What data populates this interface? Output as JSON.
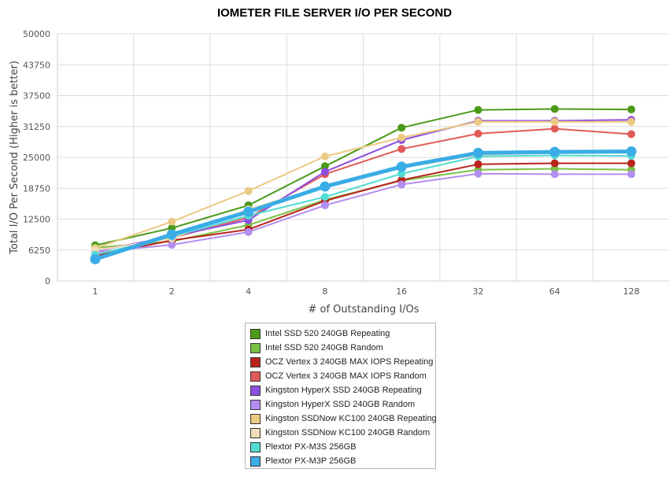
{
  "chart_data": {
    "type": "line",
    "title": "IOMETER FILE SERVER I/O PER SECOND",
    "xlabel": "# of Outstanding I/Os",
    "ylabel": "Total I/O Per Second (Higher is better)",
    "categories": [
      "1",
      "2",
      "4",
      "8",
      "16",
      "32",
      "64",
      "128"
    ],
    "y_ticks": [
      "0",
      "6250",
      "12500",
      "18750",
      "25000",
      "31250",
      "37500",
      "43750",
      "50000"
    ],
    "ylim": [
      0,
      50000
    ],
    "grid": true,
    "legend_position": "bottom",
    "series": [
      {
        "name": "Intel SSD 520 240GB Repeating",
        "color": "#4a9a18",
        "width": 2,
        "values": [
          7200,
          10700,
          15300,
          23200,
          31000,
          34600,
          34800,
          34700
        ]
      },
      {
        "name": "Intel SSD 520 240GB Random",
        "color": "#79c145",
        "width": 2,
        "values": [
          6700,
          8000,
          11300,
          16400,
          20300,
          22500,
          22700,
          22500
        ]
      },
      {
        "name": "OCZ Vertex 3 240GB MAX IOPS Repeating",
        "color": "#b8231c",
        "width": 2,
        "values": [
          5100,
          8200,
          10400,
          16200,
          20400,
          23600,
          23800,
          23800
        ]
      },
      {
        "name": "OCZ Vertex 3 240GB MAX IOPS Random",
        "color": "#e05a58",
        "width": 2,
        "values": [
          6200,
          8700,
          12800,
          21600,
          26700,
          29800,
          30800,
          29700
        ]
      },
      {
        "name": "Kingston HyperX SSD 240GB Repeating",
        "color": "#8e4fe0",
        "width": 2,
        "values": [
          6000,
          9000,
          12300,
          22100,
          28500,
          32400,
          32400,
          32600
        ]
      },
      {
        "name": "Kingston HyperX SSD 240GB Random",
        "color": "#b38ef0",
        "width": 2,
        "values": [
          5800,
          7300,
          9900,
          15300,
          19500,
          21700,
          21600,
          21600
        ]
      },
      {
        "name": "Kingston SSDNow KC100 240GB Repeating",
        "color": "#ecc982",
        "width": 2,
        "values": [
          6600,
          12000,
          18200,
          25200,
          29000,
          32200,
          32200,
          32200
        ]
      },
      {
        "name": "Kingston SSDNow KC100 240GB Random",
        "color": "#f1ddb7",
        "width": 2,
        "values": [
          6200,
          8600,
          14500,
          19200,
          22900,
          25500,
          25900,
          25900
        ]
      },
      {
        "name": "Plextor PX-M3S 256GB",
        "color": "#52dcd2",
        "width": 2,
        "values": [
          5300,
          9000,
          13200,
          17000,
          21700,
          25200,
          25400,
          25300
        ]
      },
      {
        "name": "Plextor PX-M3P 256GB",
        "color": "#3aace6",
        "width": 5,
        "values": [
          4400,
          9400,
          14000,
          19100,
          23100,
          25900,
          26100,
          26200
        ]
      }
    ]
  }
}
